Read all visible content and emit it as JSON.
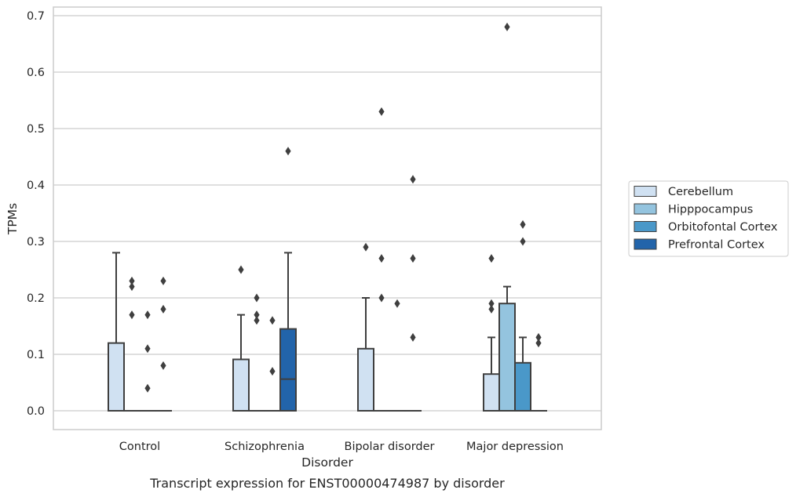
{
  "caption": "Transcript expression for ENST00000474987 by disorder",
  "colors": {
    "Cerebellum": "#d0e1f2",
    "Hipppocampus": "#94c4df",
    "Orbitofontal Cortex": "#4a98c9",
    "Prefrontal Cortex": "#2264aa",
    "line": "#3f3f3f",
    "grid": "#cccccc",
    "frame": "#cccccc"
  },
  "chart_data": {
    "type": "box",
    "xlabel": "Disorder",
    "ylabel": "TPMs",
    "ylim": [
      -0.033,
      0.715
    ],
    "yticks": [
      "0.0",
      "0.1",
      "0.2",
      "0.3",
      "0.4",
      "0.5",
      "0.6",
      "0.7"
    ],
    "grid": "horizontal",
    "legend_position": "right, outside plot",
    "categories": [
      "Control",
      "Schizophrenia",
      "Bipolar disorder",
      "Major depression"
    ],
    "series": [
      {
        "name": "Cerebellum",
        "boxes": [
          {
            "q1": 0,
            "median": 0,
            "q3": 0.12,
            "whisker_low": 0,
            "whisker_high": 0.28,
            "outliers": []
          },
          {
            "q1": 0,
            "median": 0,
            "q3": 0.091,
            "whisker_low": 0,
            "whisker_high": 0.17,
            "outliers": [
              0.25
            ]
          },
          {
            "q1": 0,
            "median": 0,
            "q3": 0.11,
            "whisker_low": 0,
            "whisker_high": 0.2,
            "outliers": [
              0.29
            ]
          },
          {
            "q1": 0,
            "median": 0,
            "q3": 0.065,
            "whisker_low": 0,
            "whisker_high": 0.13,
            "outliers": [
              0.18,
              0.19,
              0.27
            ]
          }
        ]
      },
      {
        "name": "Hipppocampus",
        "boxes": [
          {
            "q1": 0,
            "median": 0,
            "q3": 0,
            "whisker_low": 0,
            "whisker_high": 0,
            "outliers": [
              0.17,
              0.22,
              0.23
            ]
          },
          {
            "q1": 0,
            "median": 0,
            "q3": 0,
            "whisker_low": 0,
            "whisker_high": 0,
            "outliers": [
              0.16,
              0.17,
              0.2
            ]
          },
          {
            "q1": 0,
            "median": 0,
            "q3": 0,
            "whisker_low": 0,
            "whisker_high": 0,
            "outliers": [
              0.2,
              0.27,
              0.53
            ]
          },
          {
            "q1": 0,
            "median": 0,
            "q3": 0.19,
            "whisker_low": 0,
            "whisker_high": 0.22,
            "outliers": [
              0.68
            ]
          }
        ]
      },
      {
        "name": "Orbitofontal Cortex",
        "boxes": [
          {
            "q1": 0,
            "median": 0,
            "q3": 0,
            "whisker_low": 0,
            "whisker_high": 0,
            "outliers": [
              0.04,
              0.11,
              0.17
            ]
          },
          {
            "q1": 0,
            "median": 0,
            "q3": 0,
            "whisker_low": 0,
            "whisker_high": 0,
            "outliers": [
              0.07,
              0.16
            ]
          },
          {
            "q1": 0,
            "median": 0,
            "q3": 0,
            "whisker_low": 0,
            "whisker_high": 0,
            "outliers": [
              0.19
            ]
          },
          {
            "q1": 0,
            "median": 0,
            "q3": 0.085,
            "whisker_low": 0,
            "whisker_high": 0.13,
            "outliers": [
              0.3,
              0.33
            ]
          }
        ]
      },
      {
        "name": "Prefrontal Cortex",
        "boxes": [
          {
            "q1": 0,
            "median": 0,
            "q3": 0,
            "whisker_low": 0,
            "whisker_high": 0,
            "outliers": [
              0.08,
              0.18,
              0.23
            ]
          },
          {
            "q1": 0,
            "median": 0.056,
            "q3": 0.145,
            "whisker_low": 0,
            "whisker_high": 0.28,
            "outliers": [
              0.46
            ]
          },
          {
            "q1": 0,
            "median": 0,
            "q3": 0,
            "whisker_low": 0,
            "whisker_high": 0,
            "outliers": [
              0.13,
              0.27,
              0.41
            ]
          },
          {
            "q1": 0,
            "median": 0,
            "q3": 0,
            "whisker_low": 0,
            "whisker_high": 0,
            "outliers": [
              0.12,
              0.13
            ]
          }
        ]
      }
    ]
  }
}
